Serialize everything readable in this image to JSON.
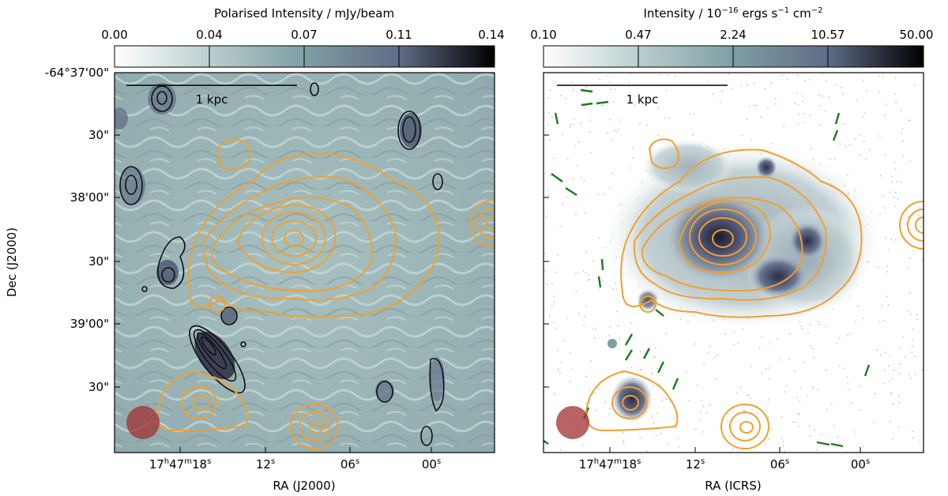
{
  "chart_data": [
    {
      "type": "heatmap",
      "panel": "left",
      "colorbar": {
        "label": "Polarised Intensity / mJy/beam",
        "ticks": [
          "0.00",
          "0.04",
          "0.07",
          "0.11",
          "0.14"
        ],
        "range": [
          0.0,
          0.14
        ],
        "scale": "linear",
        "colors": [
          "#ffffff",
          "#b9cfcf",
          "#7f9ea4",
          "#5e6c86",
          "#000000"
        ]
      },
      "yaxis": {
        "label": "Dec (J2000)",
        "ticks": [
          "-64°37'00\"",
          "30\"",
          "38'00\"",
          "30\"",
          "39'00\"",
          "30\""
        ]
      },
      "xaxis": {
        "label": "RA (J2000)",
        "ticks": [
          "17h47m18s",
          "12s",
          "06s",
          "00s"
        ],
        "tick_parts": [
          {
            "h": "17",
            "hs": "h",
            "m": "47",
            "ms": "m",
            "s": "18",
            "ss": "s"
          },
          {
            "s": "12",
            "ss": "s"
          },
          {
            "s": "06",
            "ss": "s"
          },
          {
            "s": "00",
            "ss": "s"
          }
        ]
      },
      "scale_bar": "1 kpc",
      "contours_colors": {
        "orange": "#f0a030",
        "black": "#111111"
      },
      "beam_color": "#a03030"
    },
    {
      "type": "heatmap",
      "panel": "right",
      "colorbar": {
        "label_parts": {
          "base": "Intensity / 10",
          "e1": "−16",
          "mid": " ergs s",
          "e2": "−1",
          "mid2": " cm",
          "e3": "−2"
        },
        "label": "Intensity / 10^-16 ergs s^-1 cm^-2",
        "ticks": [
          "0.10",
          "0.47",
          "2.24",
          "10.57",
          "50.00"
        ],
        "range": [
          0.1,
          50.0
        ],
        "scale": "log",
        "colors": [
          "#ffffff",
          "#b9cfcf",
          "#7f9ea4",
          "#5e6c86",
          "#000000"
        ]
      },
      "xaxis": {
        "label": "RA (ICRS)",
        "ticks": [
          "17h47m18s",
          "12s",
          "06s",
          "00s"
        ],
        "tick_parts": [
          {
            "h": "17",
            "hs": "h",
            "m": "47",
            "ms": "m",
            "s": "18",
            "ss": "s"
          },
          {
            "s": "12",
            "ss": "s"
          },
          {
            "s": "06",
            "ss": "s"
          },
          {
            "s": "00",
            "ss": "s"
          }
        ]
      },
      "scale_bar": "1 kpc",
      "vector_color": "#1a7a1a",
      "beam_color": "#a03030"
    }
  ]
}
